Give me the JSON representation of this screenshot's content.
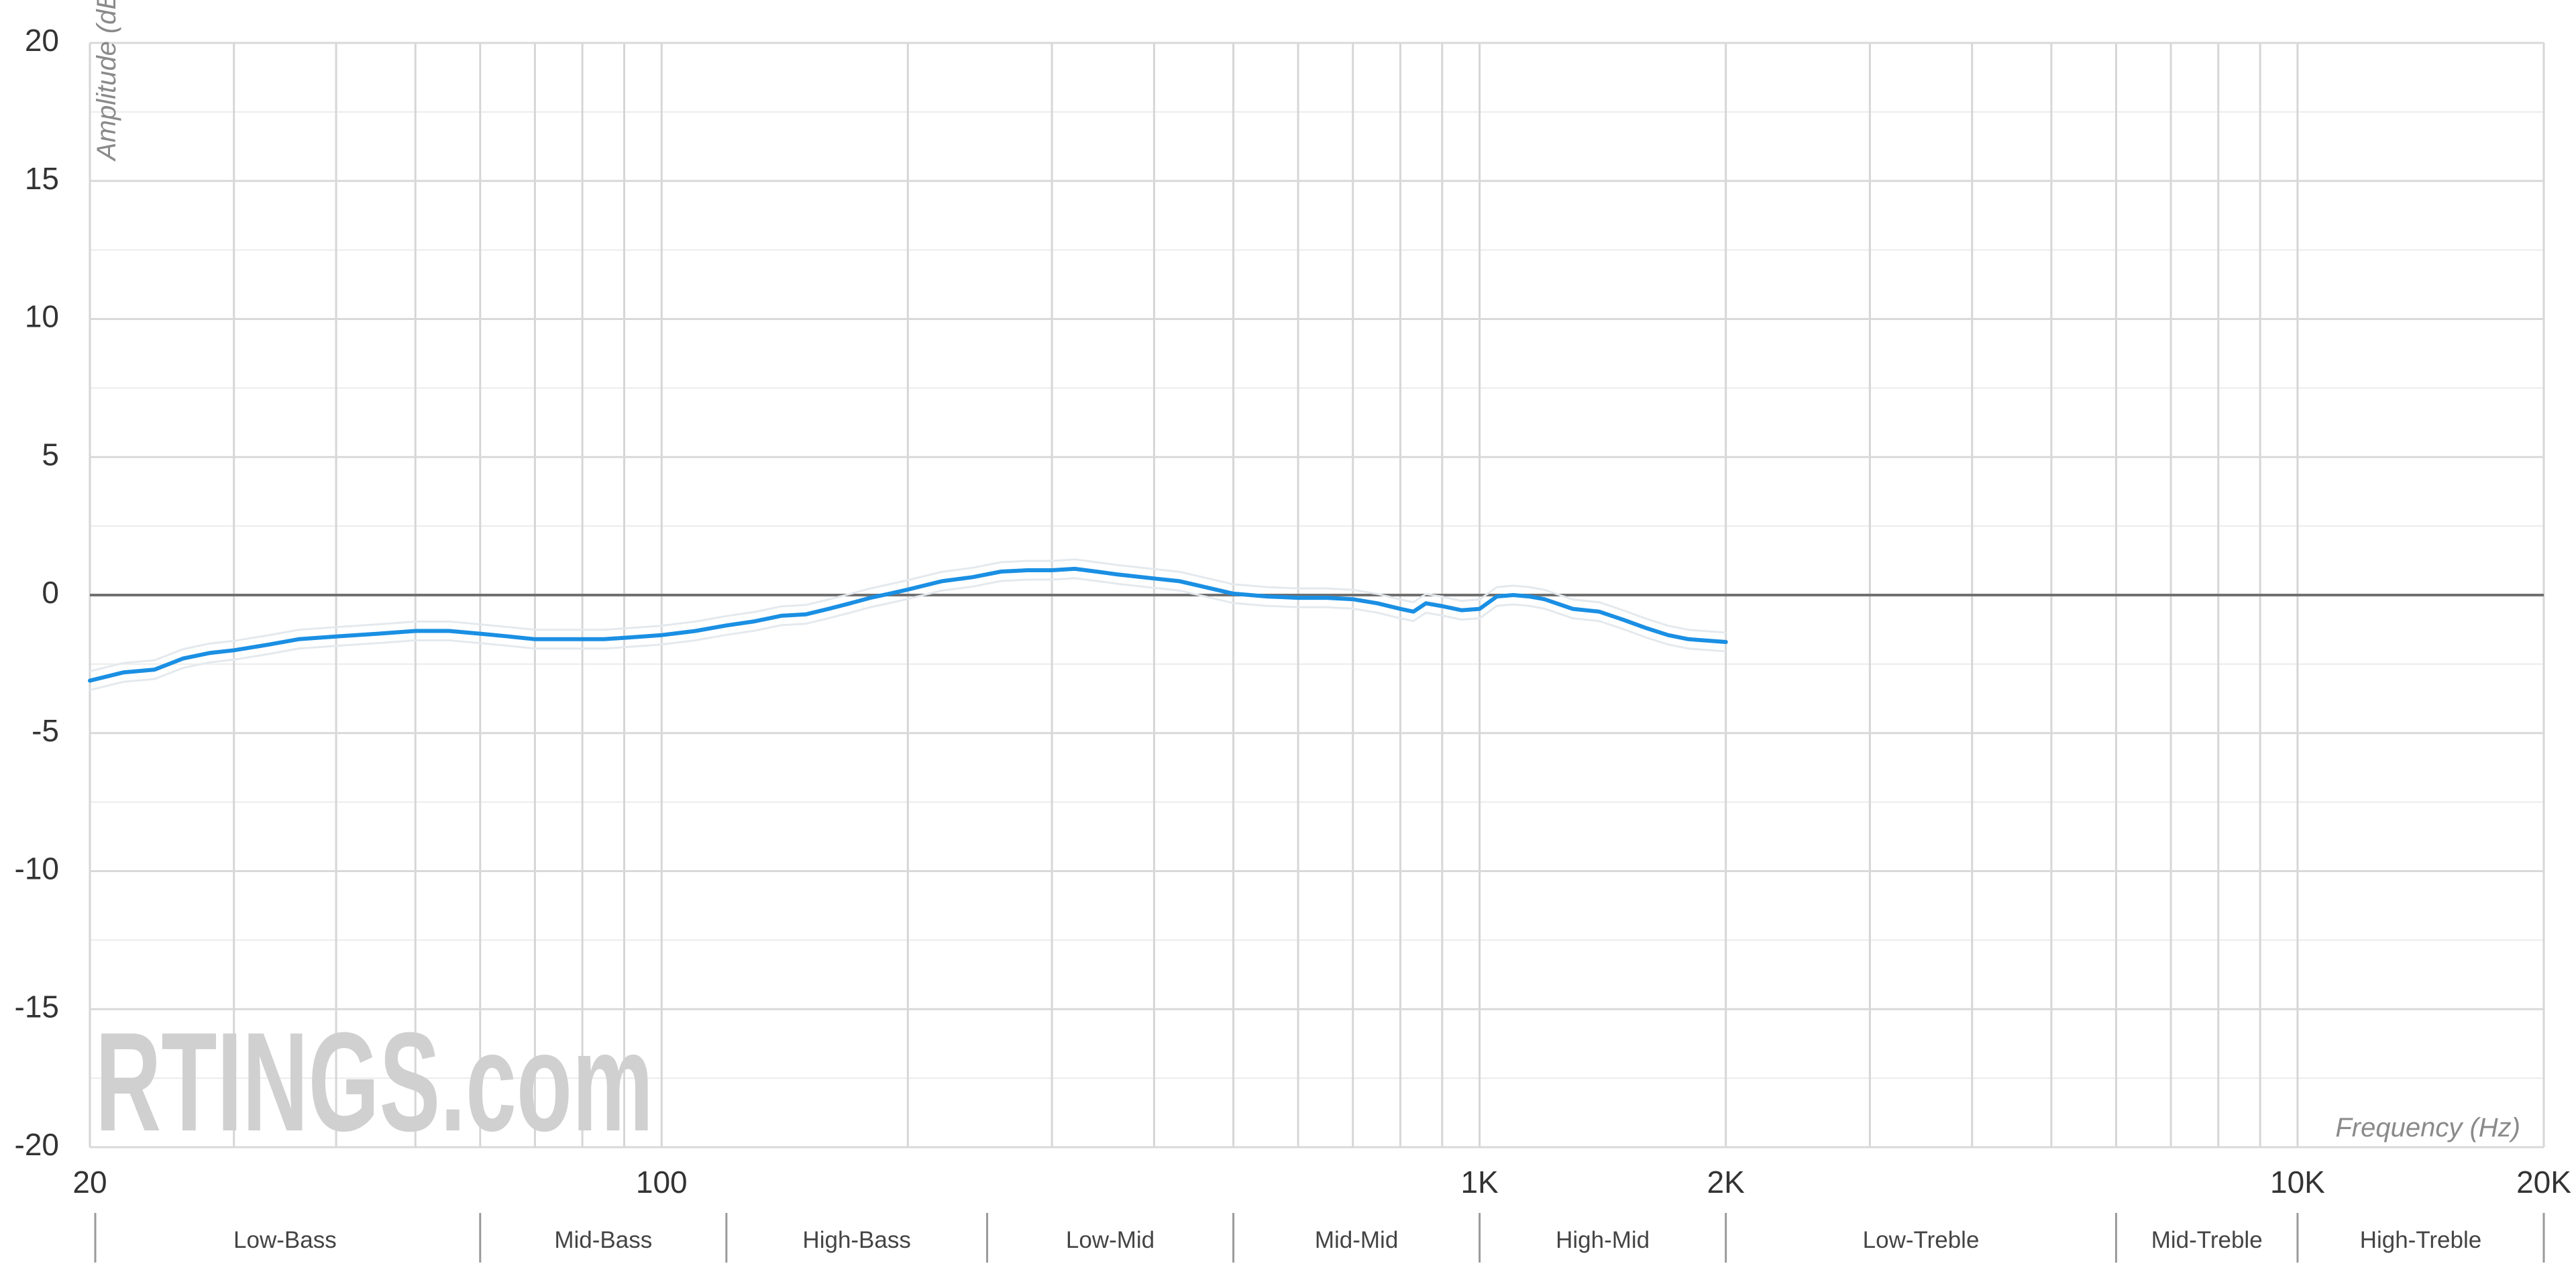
{
  "watermark": {
    "text": "RTINGS.com"
  },
  "chart_data": {
    "type": "line",
    "title": "",
    "xlabel": "Frequency (Hz)",
    "ylabel": "Amplitude (dBr)",
    "x_scale": "log",
    "xlim": [
      20,
      20000
    ],
    "ylim": [
      -20,
      20
    ],
    "grid": true,
    "y_ticks": [
      "20",
      "15",
      "10",
      "5",
      "0",
      "-5",
      "-10",
      "-15",
      "-20"
    ],
    "y_tick_values": [
      20,
      15,
      10,
      5,
      0,
      -5,
      -10,
      -15,
      -20
    ],
    "x_ticks": [
      {
        "value": 20,
        "label": "20"
      },
      {
        "value": 100,
        "label": "100"
      },
      {
        "value": 1000,
        "label": "1K"
      },
      {
        "value": 2000,
        "label": "2K"
      },
      {
        "value": 10000,
        "label": "10K"
      },
      {
        "value": 20000,
        "label": "20K"
      }
    ],
    "x_gridlines": [
      30,
      40,
      50,
      60,
      70,
      80,
      90,
      100,
      200,
      300,
      400,
      500,
      600,
      700,
      800,
      900,
      1000,
      2000,
      3000,
      4000,
      5000,
      6000,
      7000,
      8000,
      9000,
      10000
    ],
    "reference_line": 0,
    "bands": [
      {
        "label": "Low-Bass",
        "from": 20,
        "to": 60
      },
      {
        "label": "Mid-Bass",
        "from": 60,
        "to": 120
      },
      {
        "label": "High-Bass",
        "from": 120,
        "to": 250
      },
      {
        "label": "Low-Mid",
        "from": 250,
        "to": 500
      },
      {
        "label": "Mid-Mid",
        "from": 500,
        "to": 1000
      },
      {
        "label": "High-Mid",
        "from": 1000,
        "to": 2000
      },
      {
        "label": "Low-Treble",
        "from": 2000,
        "to": 6000
      },
      {
        "label": "Mid-Treble",
        "from": 6000,
        "to": 10000
      },
      {
        "label": "High-Treble",
        "from": 10000,
        "to": 20000
      }
    ],
    "series": [
      {
        "color": "#1a8fe3",
        "points": [
          [
            20,
            -3.1
          ],
          [
            22,
            -2.8
          ],
          [
            24,
            -2.7
          ],
          [
            26,
            -2.3
          ],
          [
            28,
            -2.1
          ],
          [
            30,
            -2.0
          ],
          [
            33,
            -1.8
          ],
          [
            36,
            -1.6
          ],
          [
            40,
            -1.5
          ],
          [
            45,
            -1.4
          ],
          [
            50,
            -1.3
          ],
          [
            55,
            -1.3
          ],
          [
            60,
            -1.4
          ],
          [
            65,
            -1.5
          ],
          [
            70,
            -1.6
          ],
          [
            75,
            -1.6
          ],
          [
            80,
            -1.6
          ],
          [
            85,
            -1.6
          ],
          [
            90,
            -1.55
          ],
          [
            100,
            -1.45
          ],
          [
            110,
            -1.3
          ],
          [
            120,
            -1.1
          ],
          [
            130,
            -0.95
          ],
          [
            140,
            -0.75
          ],
          [
            150,
            -0.7
          ],
          [
            160,
            -0.5
          ],
          [
            170,
            -0.3
          ],
          [
            180,
            -0.1
          ],
          [
            190,
            0.05
          ],
          [
            200,
            0.2
          ],
          [
            220,
            0.5
          ],
          [
            240,
            0.65
          ],
          [
            260,
            0.85
          ],
          [
            280,
            0.9
          ],
          [
            300,
            0.9
          ],
          [
            320,
            0.95
          ],
          [
            340,
            0.85
          ],
          [
            360,
            0.75
          ],
          [
            400,
            0.6
          ],
          [
            430,
            0.5
          ],
          [
            460,
            0.3
          ],
          [
            500,
            0.05
          ],
          [
            550,
            -0.05
          ],
          [
            600,
            -0.1
          ],
          [
            650,
            -0.1
          ],
          [
            700,
            -0.15
          ],
          [
            750,
            -0.3
          ],
          [
            800,
            -0.5
          ],
          [
            830,
            -0.6
          ],
          [
            860,
            -0.3
          ],
          [
            900,
            -0.4
          ],
          [
            950,
            -0.55
          ],
          [
            1000,
            -0.5
          ],
          [
            1050,
            -0.05
          ],
          [
            1100,
            0.0
          ],
          [
            1150,
            -0.05
          ],
          [
            1200,
            -0.15
          ],
          [
            1300,
            -0.5
          ],
          [
            1400,
            -0.6
          ],
          [
            1500,
            -0.9
          ],
          [
            1600,
            -1.2
          ],
          [
            1700,
            -1.45
          ],
          [
            1800,
            -1.6
          ],
          [
            2000,
            -1.7
          ]
        ]
      }
    ]
  }
}
